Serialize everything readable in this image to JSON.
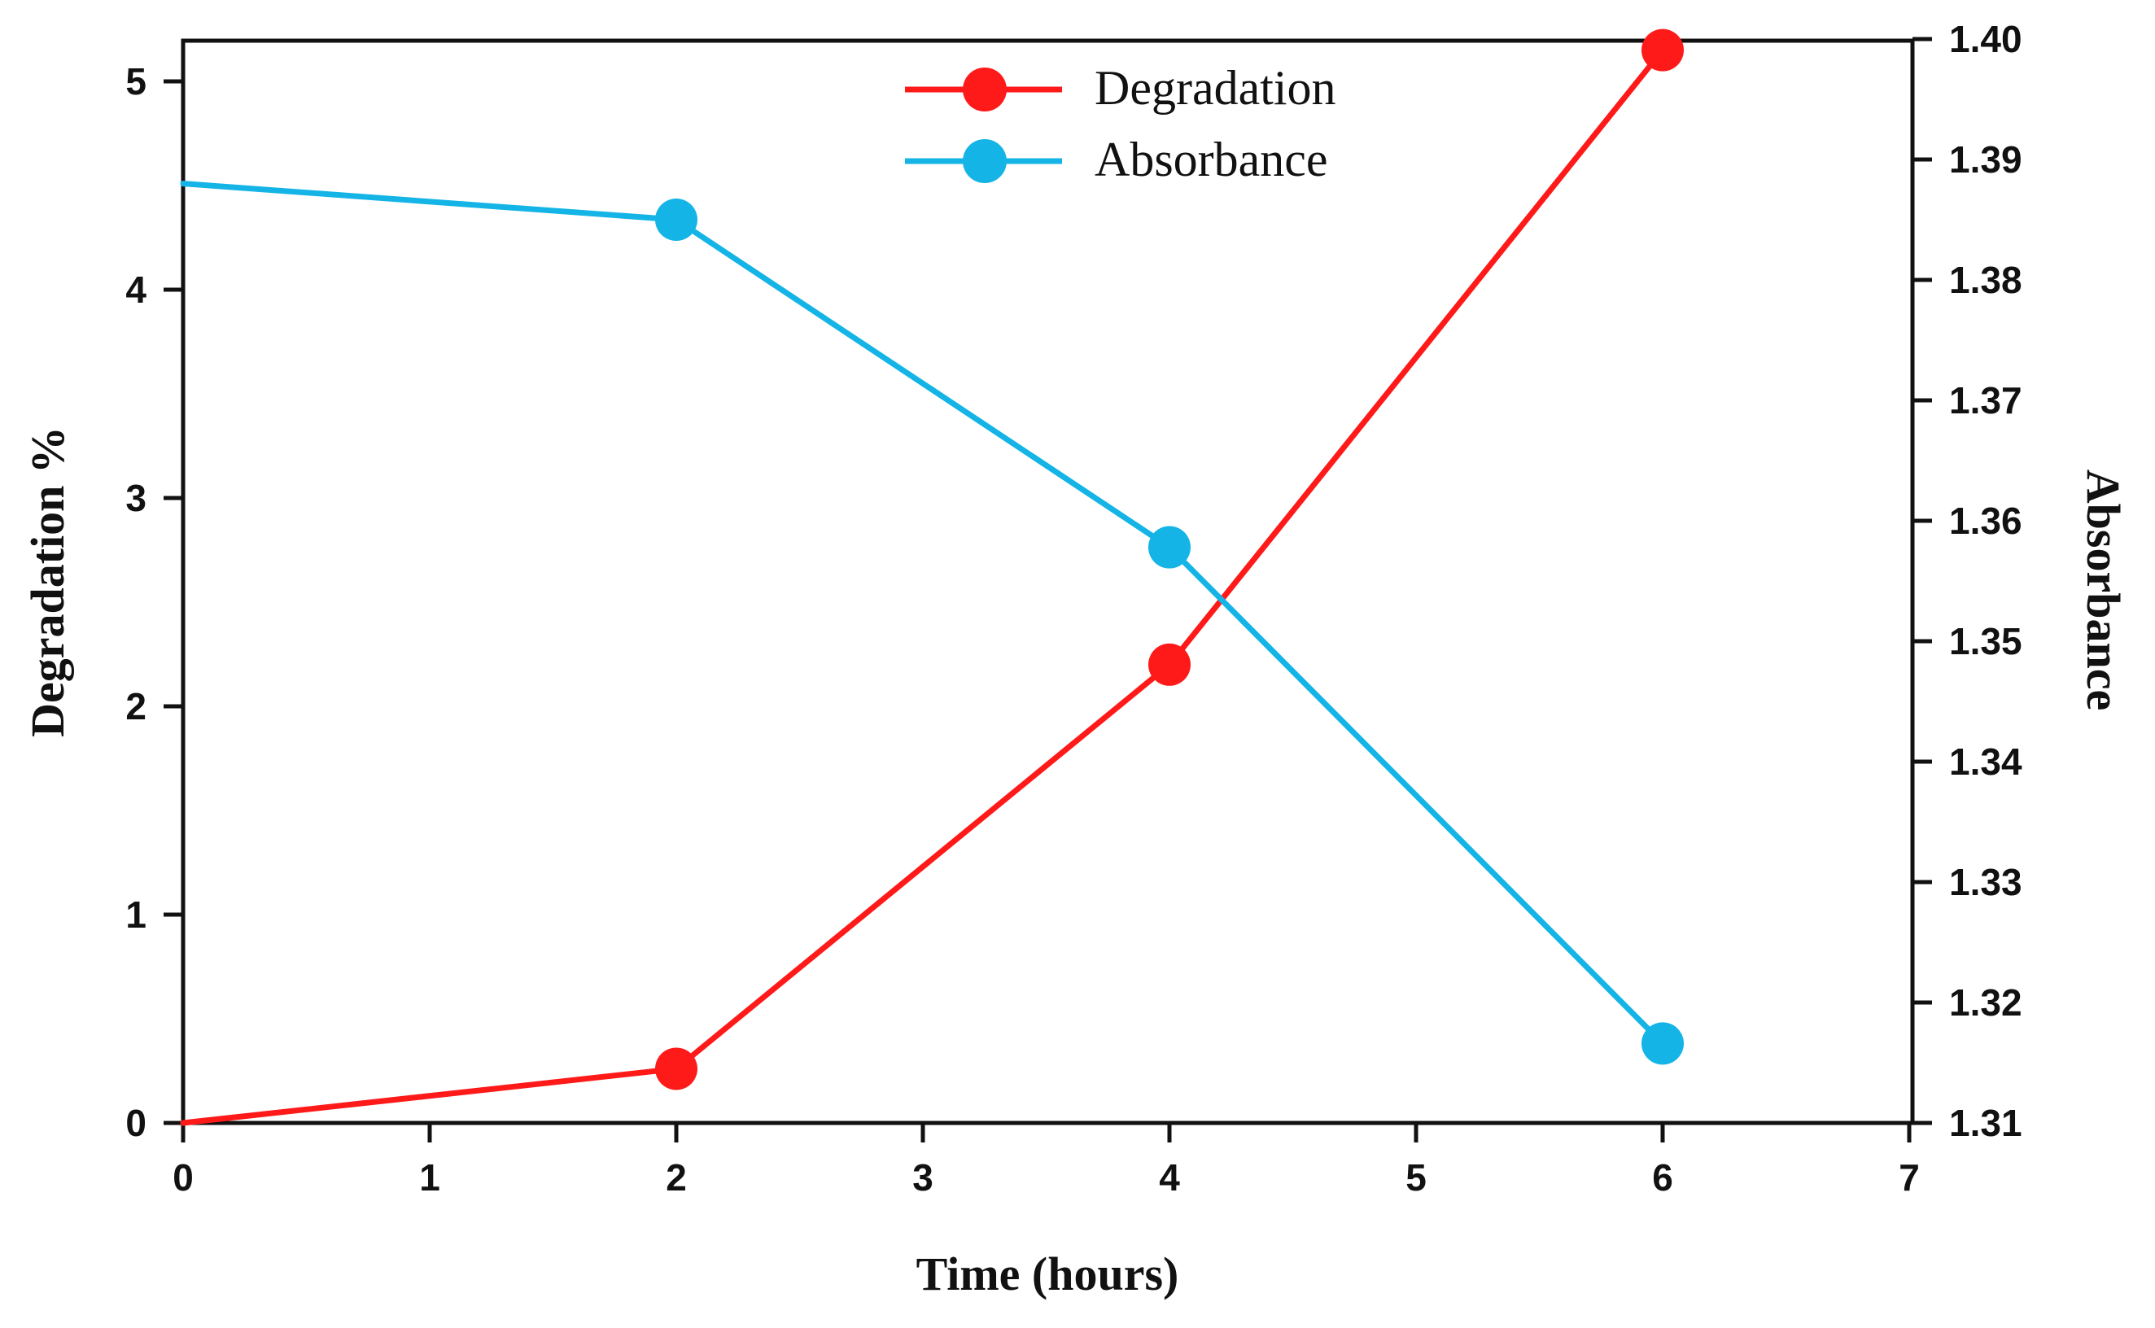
{
  "chart_data": {
    "type": "line",
    "title": "",
    "xlabel": "Time (hours)",
    "ylabel_left": "Degradation %",
    "ylabel_right": "Absorbance",
    "xlim": [
      0,
      7
    ],
    "ylim_left": [
      0,
      5.2
    ],
    "ylim_right": [
      1.31,
      1.4
    ],
    "xticks": [
      "0",
      "1",
      "2",
      "3",
      "4",
      "5",
      "6",
      "7"
    ],
    "yticks_left": [
      "0",
      "1",
      "2",
      "3",
      "4",
      "5"
    ],
    "yticks_right": [
      "1.31",
      "1.32",
      "1.33",
      "1.34",
      "1.35",
      "1.36",
      "1.37",
      "1.38",
      "1.39",
      "1.40"
    ],
    "grid": false,
    "legend_position": "top-center",
    "series": [
      {
        "name": "Degradation",
        "axis": "left",
        "color": "#ff1a1a",
        "x": [
          0,
          2,
          4,
          6
        ],
        "y": [
          0,
          0.26,
          2.2,
          5.15
        ],
        "markers": [
          false,
          true,
          true,
          true
        ]
      },
      {
        "name": "Absorbance",
        "axis": "right",
        "color": "#14b4e6",
        "x": [
          0,
          2,
          4,
          6
        ],
        "y": [
          1.388,
          1.385,
          1.3578,
          1.3166
        ],
        "markers": [
          false,
          true,
          true,
          true
        ]
      }
    ]
  }
}
